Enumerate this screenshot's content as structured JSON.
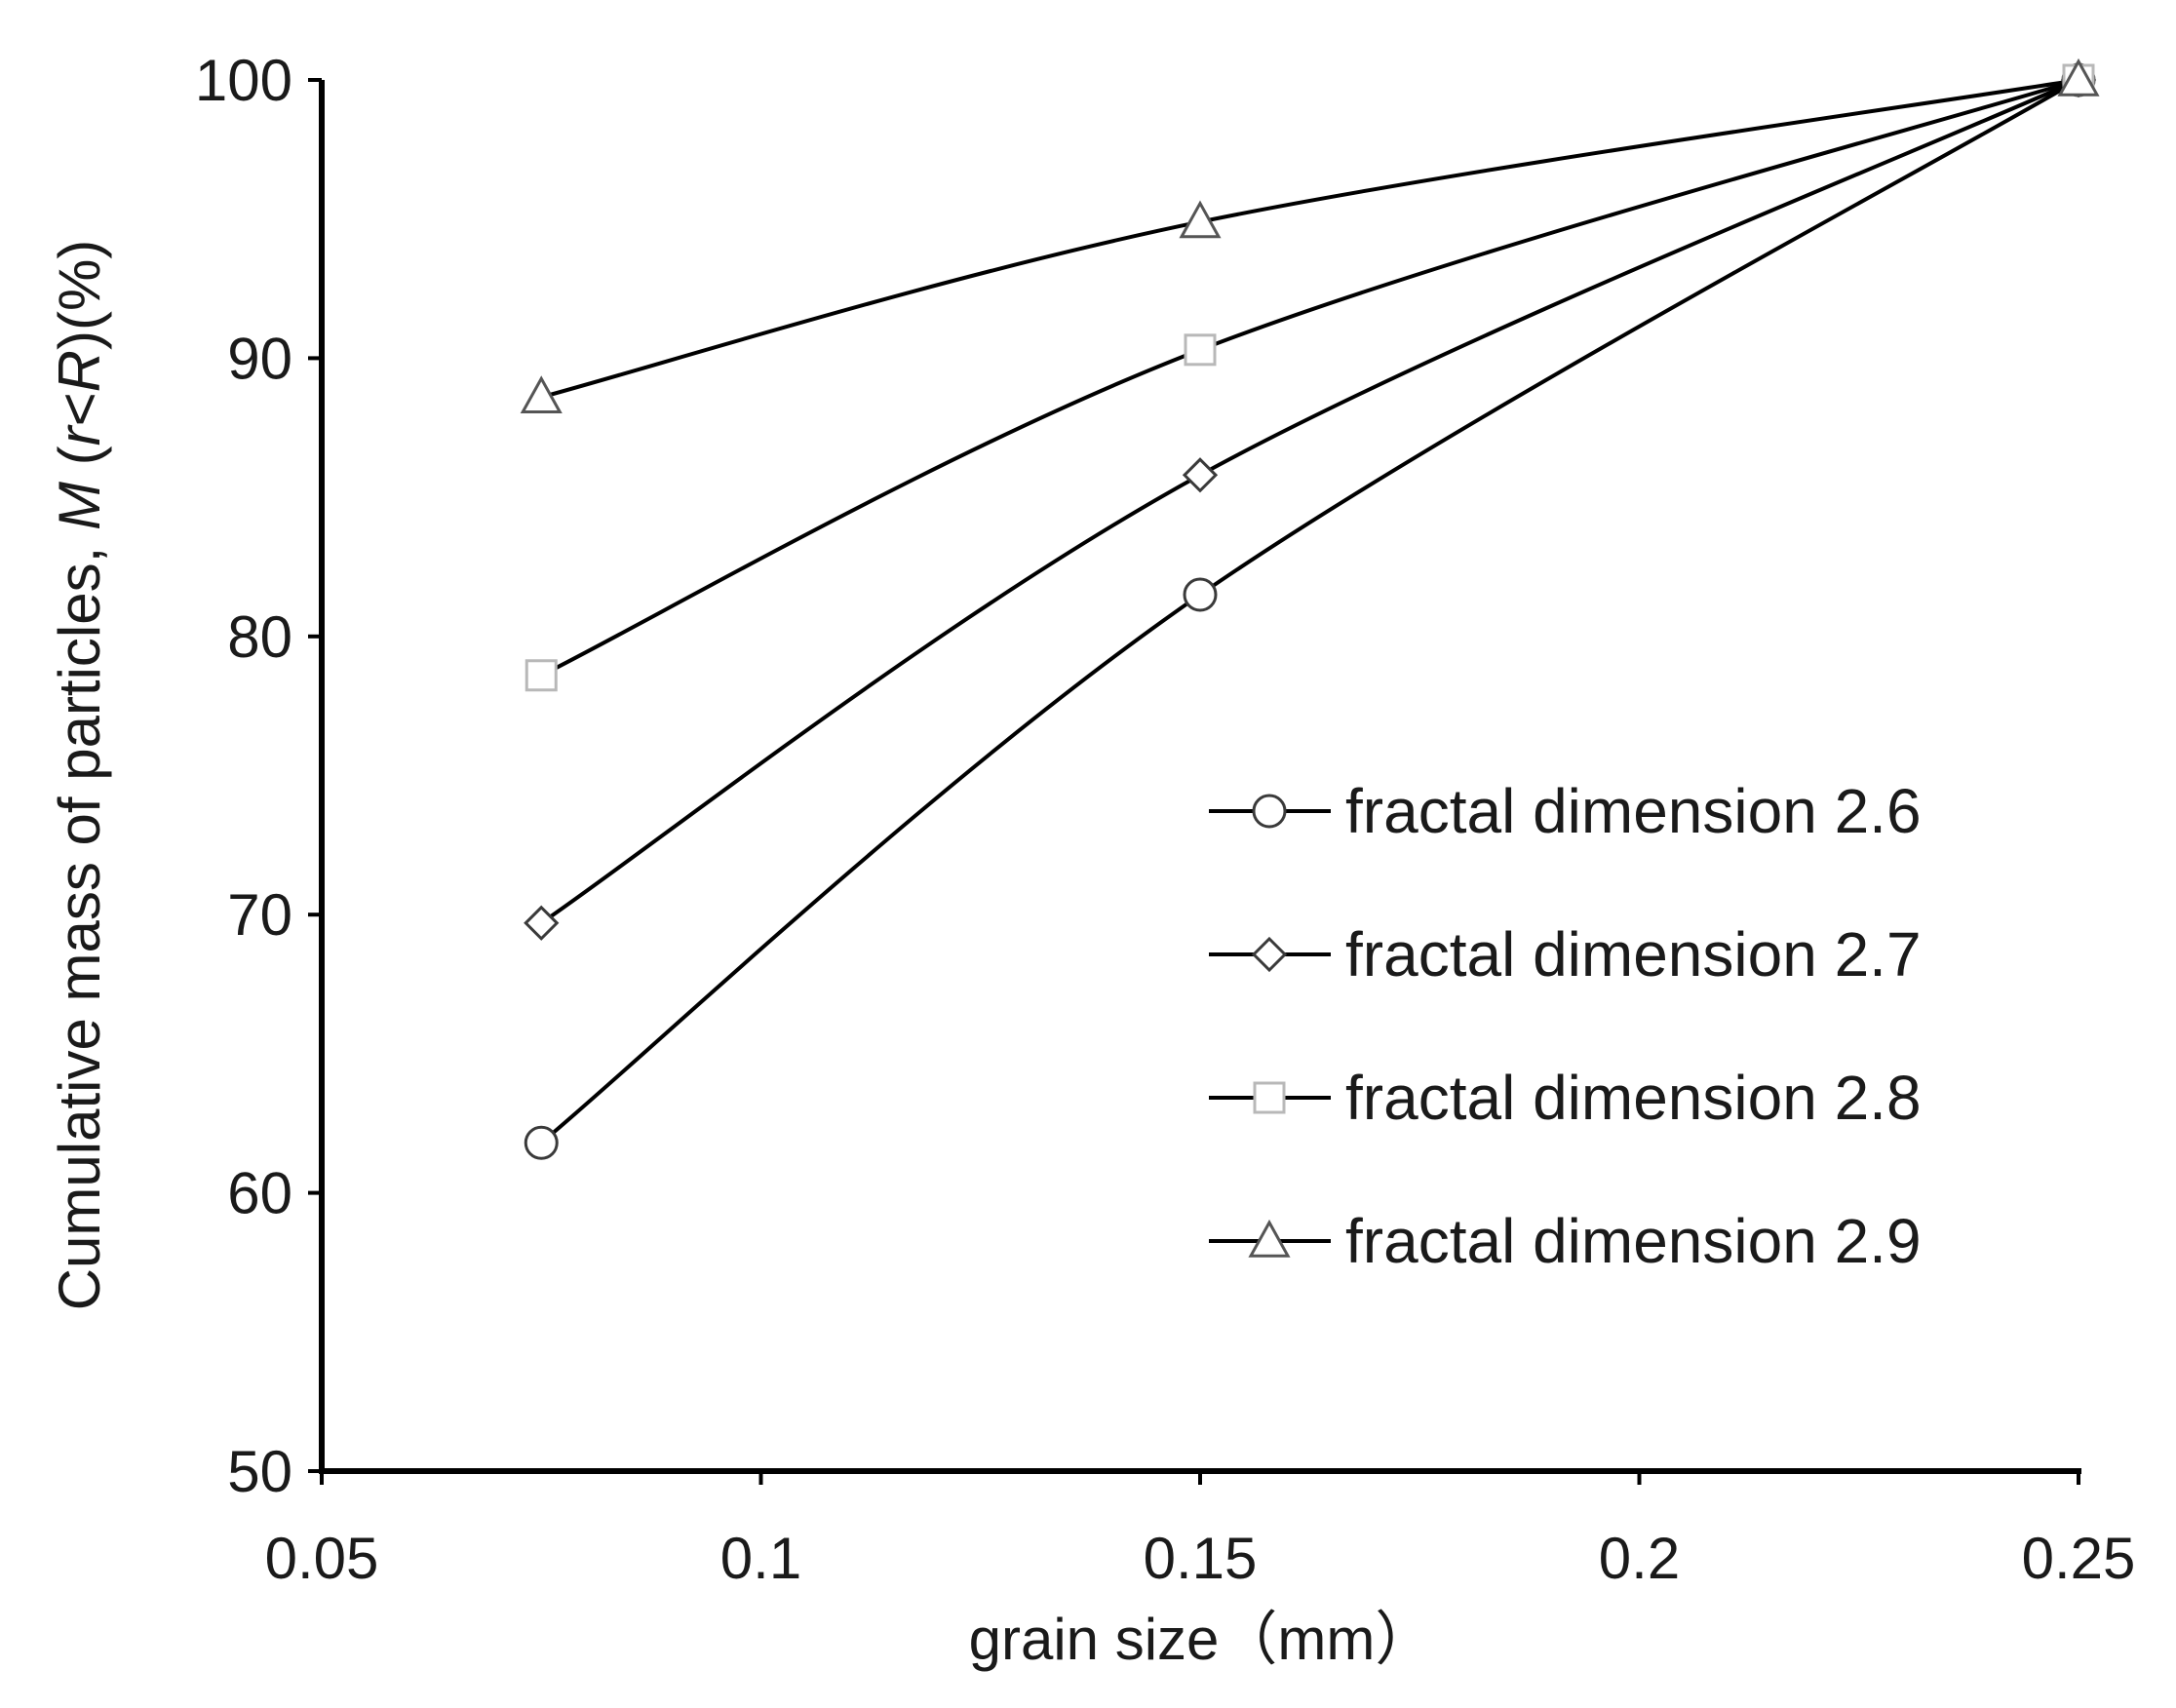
{
  "chart_data": {
    "type": "line",
    "title": "",
    "xlabel": "grain size（mm）",
    "ylabel": {
      "prefix": "Cumulative mass of particles, ",
      "italic_m": "M",
      "open_paren": " (",
      "italic_r": "r",
      "lt": "<",
      "italic_R": "R",
      "suffix": ")(%)"
    },
    "xlim": [
      0.05,
      0.25
    ],
    "ylim": [
      50,
      100
    ],
    "x_ticks": [
      0.05,
      0.1,
      0.15,
      0.2,
      0.25
    ],
    "x_tick_labels": [
      "0.05",
      "0.1",
      "0.15",
      "0.2",
      "0.25"
    ],
    "y_ticks": [
      50,
      60,
      70,
      80,
      90,
      100
    ],
    "y_tick_labels": [
      "50",
      "60",
      "70",
      "80",
      "90",
      "100"
    ],
    "grid": false,
    "legend_position": "right",
    "x": [
      0.075,
      0.15,
      0.25
    ],
    "series": [
      {
        "name": "fractal dimension 2.6",
        "marker": "circle",
        "values": [
          61.8,
          81.5,
          100
        ]
      },
      {
        "name": "fractal dimension 2.7",
        "marker": "diamond",
        "values": [
          69.7,
          85.8,
          100
        ]
      },
      {
        "name": "fractal dimension 2.8",
        "marker": "square",
        "values": [
          78.6,
          90.3,
          100
        ]
      },
      {
        "name": "fractal dimension 2.9",
        "marker": "triangle",
        "values": [
          88.6,
          94.9,
          100
        ]
      }
    ]
  }
}
